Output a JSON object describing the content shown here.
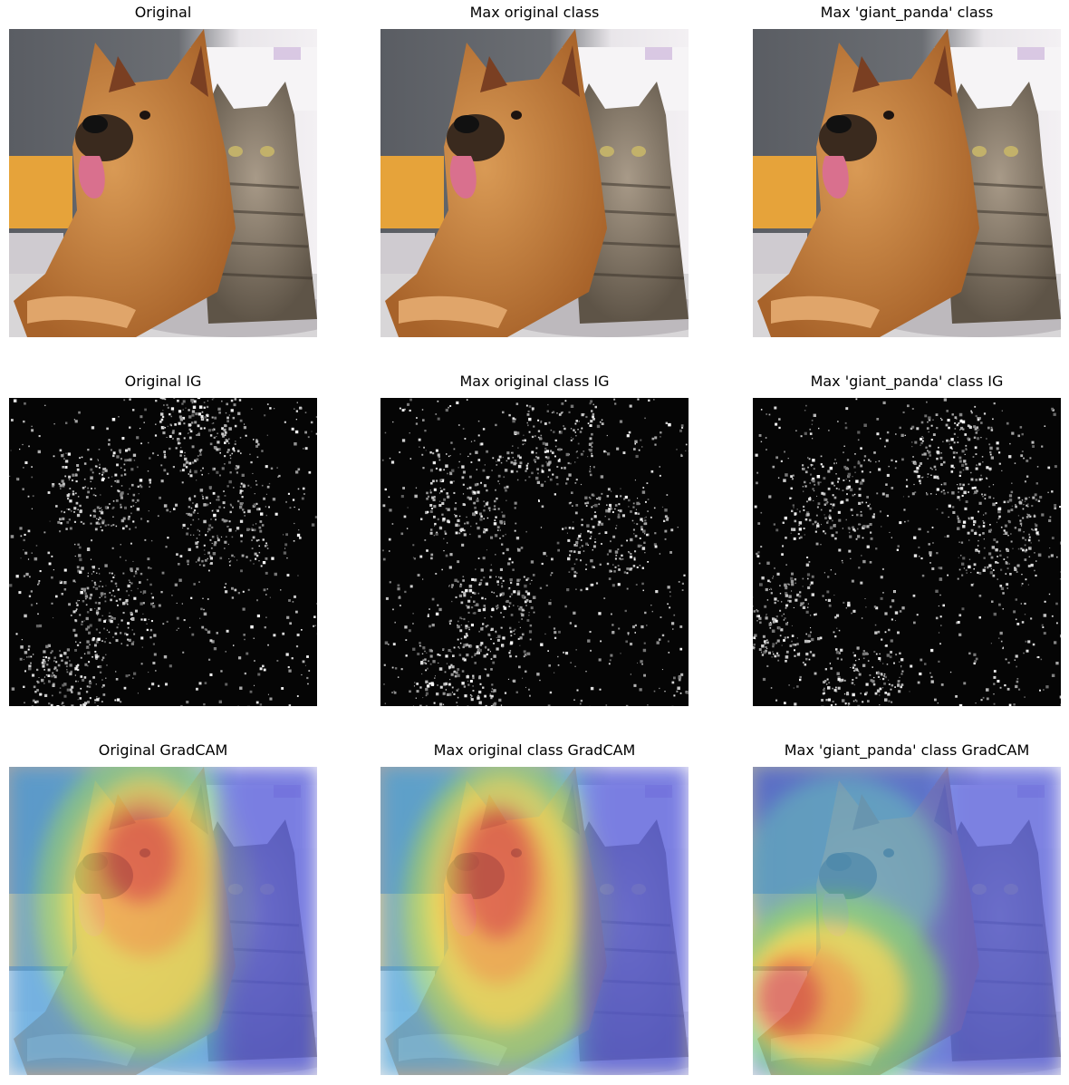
{
  "figure": {
    "panels": [
      {
        "title": "Original",
        "kind": "photo",
        "variant": 0
      },
      {
        "title": "Max original class",
        "kind": "photo",
        "variant": 1
      },
      {
        "title": "Max 'giant_panda' class",
        "kind": "photo",
        "variant": 2
      },
      {
        "title": "Original IG",
        "kind": "ig",
        "variant": 0
      },
      {
        "title": "Max original class IG",
        "kind": "ig",
        "variant": 1
      },
      {
        "title": "Max 'giant_panda' class IG",
        "kind": "ig",
        "variant": 2
      },
      {
        "title": "Original GradCAM",
        "kind": "gradcam",
        "variant": 0
      },
      {
        "title": "Max original class GradCAM",
        "kind": "gradcam",
        "variant": 1
      },
      {
        "title": "Max 'giant_panda' class GradCAM",
        "kind": "gradcam",
        "variant": 2
      }
    ],
    "colors": {
      "background": "#ffffff",
      "title_text": "#000000",
      "wall": "#5a5d63",
      "sofa": "#d8d6d8",
      "dog_fur": "#c8823c",
      "dog_dark": "#3a2a1e",
      "cat_fur": "#8a7d6e",
      "chair": "#e6a33a"
    }
  }
}
